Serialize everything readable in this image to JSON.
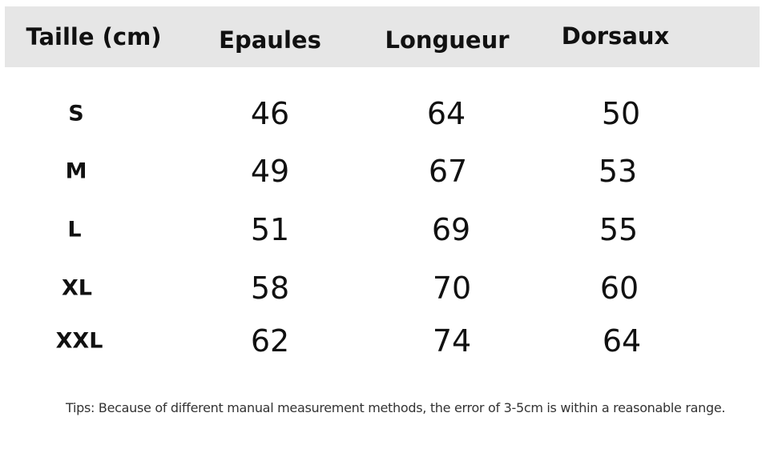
{
  "table": {
    "headers": [
      "Taille (cm)",
      "Epaules",
      "Longueur",
      "Dorsaux"
    ],
    "rows": [
      [
        "S",
        "46",
        "64",
        "50"
      ],
      [
        "M",
        "49",
        "67",
        "53"
      ],
      [
        "L",
        "51",
        "69",
        "55"
      ],
      [
        "XL",
        "58",
        "70",
        "60"
      ],
      [
        "XXL",
        "62",
        "74",
        "64"
      ]
    ]
  },
  "tips": "Tips: Because of different manual measurement methods, the error of 3-5cm is within a reasonable range.",
  "colors": {
    "header_background": "#e6e6e6",
    "text": "#111111"
  }
}
